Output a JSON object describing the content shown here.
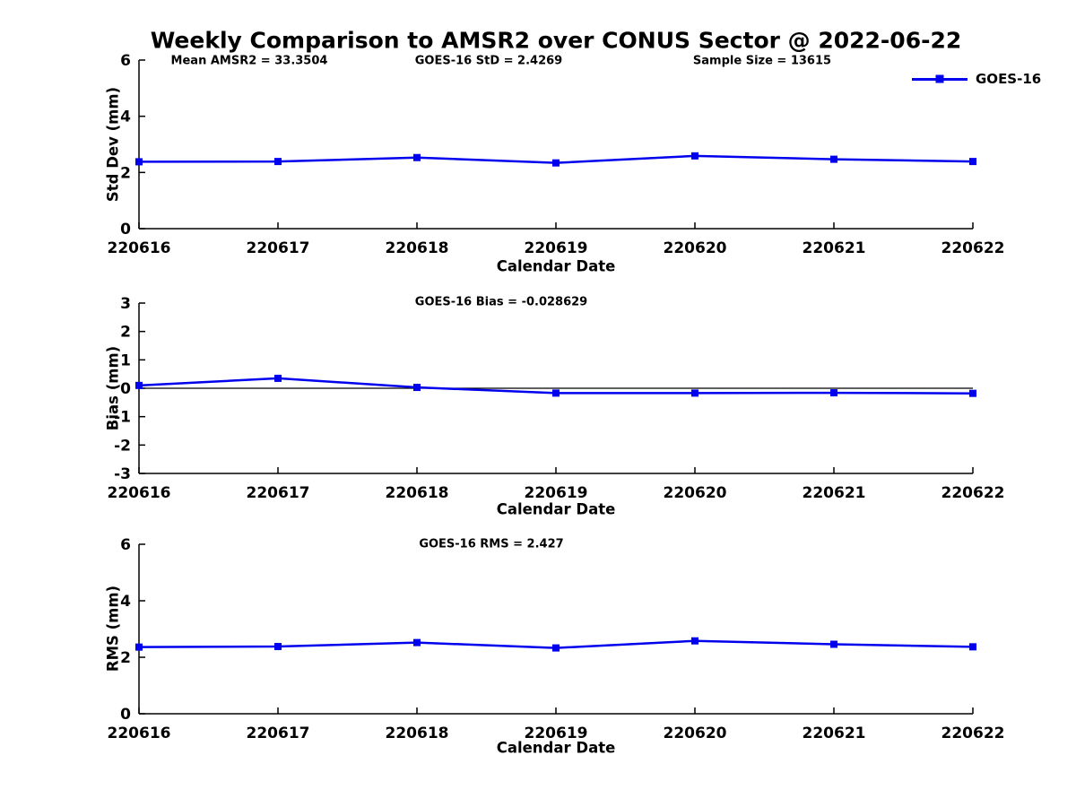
{
  "title": "Weekly Comparison to AMSR2 over CONUS Sector @ 2022-06-22",
  "colors": {
    "line": "#0000EE",
    "axis": "#000000",
    "text": "#000000",
    "background": "#FFFFFF"
  },
  "legend": {
    "label": "GOES-16",
    "marker": "blue-square-icon",
    "position": "top-right",
    "frame": false
  },
  "chart_data": [
    {
      "type": "line",
      "subplot": "std-dev",
      "annotations": [
        "Mean AMSR2 = 33.3504",
        "GOES-16 StD = 2.4269",
        "Sample Size = 13615"
      ],
      "categories": [
        "220616",
        "220617",
        "220618",
        "220619",
        "220620",
        "220621",
        "220622"
      ],
      "series": [
        {
          "name": "GOES-16",
          "values": [
            2.38,
            2.39,
            2.53,
            2.34,
            2.59,
            2.47,
            2.39
          ]
        }
      ],
      "xlabel": "Calendar Date",
      "ylabel": "Std Dev (mm)",
      "ylim": [
        0,
        6
      ],
      "yticks": [
        0,
        2,
        4,
        6
      ],
      "grid": false,
      "zero_line": false
    },
    {
      "type": "line",
      "subplot": "bias",
      "annotations": [
        "GOES-16 Bias  = -0.028629"
      ],
      "categories": [
        "220616",
        "220617",
        "220618",
        "220619",
        "220620",
        "220621",
        "220622"
      ],
      "series": [
        {
          "name": "GOES-16",
          "values": [
            0.1,
            0.35,
            0.03,
            -0.17,
            -0.17,
            -0.16,
            -0.18
          ]
        }
      ],
      "xlabel": "Calendar Date",
      "ylabel": "Bias (mm)",
      "ylim": [
        -3,
        3
      ],
      "yticks": [
        -3,
        -2,
        -1,
        0,
        1,
        2,
        3
      ],
      "grid": false,
      "zero_line": true
    },
    {
      "type": "line",
      "subplot": "rms",
      "annotations": [
        "GOES-16 RMS = 2.427"
      ],
      "categories": [
        "220616",
        "220617",
        "220618",
        "220619",
        "220620",
        "220621",
        "220622"
      ],
      "series": [
        {
          "name": "GOES-16",
          "values": [
            2.36,
            2.38,
            2.52,
            2.33,
            2.58,
            2.46,
            2.37
          ]
        }
      ],
      "xlabel": "Calendar Date",
      "ylabel": "RMS (mm)",
      "ylim": [
        0,
        6
      ],
      "yticks": [
        0,
        2,
        4,
        6
      ],
      "grid": false,
      "zero_line": false
    }
  ]
}
